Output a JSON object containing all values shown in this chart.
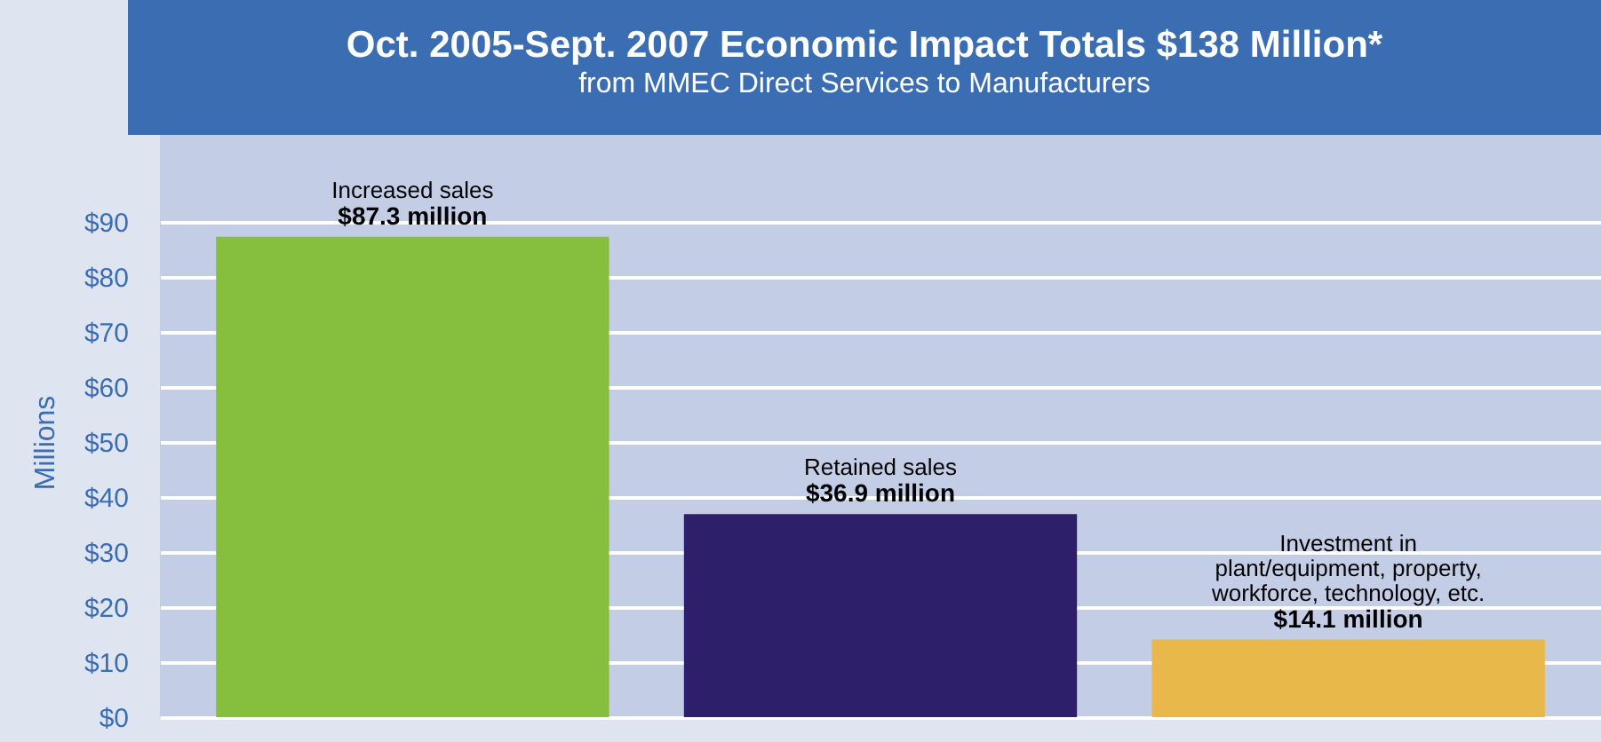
{
  "chart_data": {
    "type": "bar",
    "title": "Oct. 2005-Sept. 2007 Economic Impact Totals $138 Million*",
    "subtitle": "from MMEC Direct Services to Manufacturers",
    "ylabel": "Millions",
    "categories": [
      "Increased sales",
      "Retained sales",
      "Investment in plant/equipment, property, workforce, technology, etc."
    ],
    "values": [
      87.3,
      36.9,
      14.1
    ],
    "colors": [
      "#86bf3e",
      "#2e1f6b",
      "#e8b94a"
    ],
    "value_labels": [
      "$87.3 million",
      "$36.9 million",
      "$14.1 million"
    ],
    "ylim": [
      0,
      100
    ],
    "yticks": [
      {
        "value": 0,
        "label": "$0"
      },
      {
        "value": 10,
        "label": "$10"
      },
      {
        "value": 20,
        "label": "$20"
      },
      {
        "value": 30,
        "label": "$30"
      },
      {
        "value": 40,
        "label": "$40"
      },
      {
        "value": 50,
        "label": "$50"
      },
      {
        "value": 60,
        "label": "$60"
      },
      {
        "value": 70,
        "label": "$70"
      },
      {
        "value": 80,
        "label": "$80"
      },
      {
        "value": 90,
        "label": "$90"
      }
    ],
    "grid": true
  }
}
